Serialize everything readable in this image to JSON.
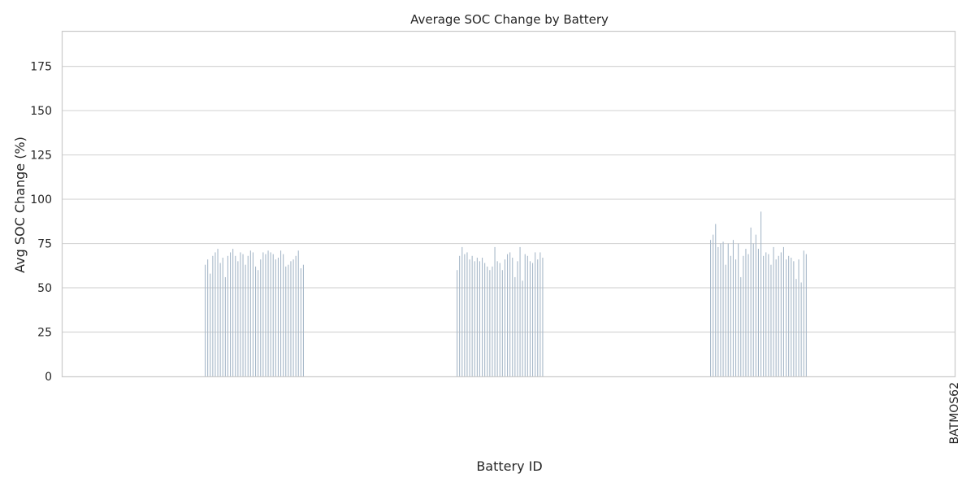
{
  "chart_data": {
    "type": "bar",
    "title": "Average SOC Change by Battery",
    "xlabel": "Battery ID",
    "ylabel": "Avg SOC Change (%)",
    "ylim": [
      0,
      195
    ],
    "yticks": [
      0,
      25,
      50,
      75,
      100,
      125,
      150,
      175
    ],
    "grid": true,
    "legend": "none",
    "colors": {
      "bar": "#a7b8c9",
      "grid": "#d6d6d6",
      "frame": "#cccccc"
    },
    "last_category_label": "BATMOS62",
    "categories_visible_group_count": 3,
    "groups": [
      {
        "values": [
          63,
          66,
          58,
          68,
          70,
          72,
          64,
          67,
          56,
          68,
          70,
          72,
          68,
          65,
          70,
          69,
          63,
          68,
          71,
          70,
          62,
          60,
          66,
          70,
          69,
          71,
          70,
          69,
          66,
          67,
          71,
          69,
          62,
          63,
          65,
          66,
          68,
          71,
          61,
          63
        ]
      },
      {
        "values": [
          60,
          68,
          73,
          69,
          70,
          66,
          68,
          65,
          67,
          65,
          67,
          64,
          62,
          60,
          62,
          73,
          65,
          64,
          60,
          66,
          69,
          70,
          67,
          56,
          65,
          73,
          54,
          69,
          68,
          65,
          64,
          70,
          66,
          70,
          67
        ]
      },
      {
        "values": [
          77,
          80,
          86,
          73,
          75,
          76,
          63,
          75,
          68,
          77,
          66,
          75,
          56,
          68,
          72,
          69,
          84,
          75,
          80,
          72,
          93,
          68,
          70,
          69,
          63,
          73,
          66,
          68,
          70,
          73,
          66,
          68,
          67,
          65,
          55,
          66,
          53,
          71,
          69
        ]
      }
    ]
  }
}
